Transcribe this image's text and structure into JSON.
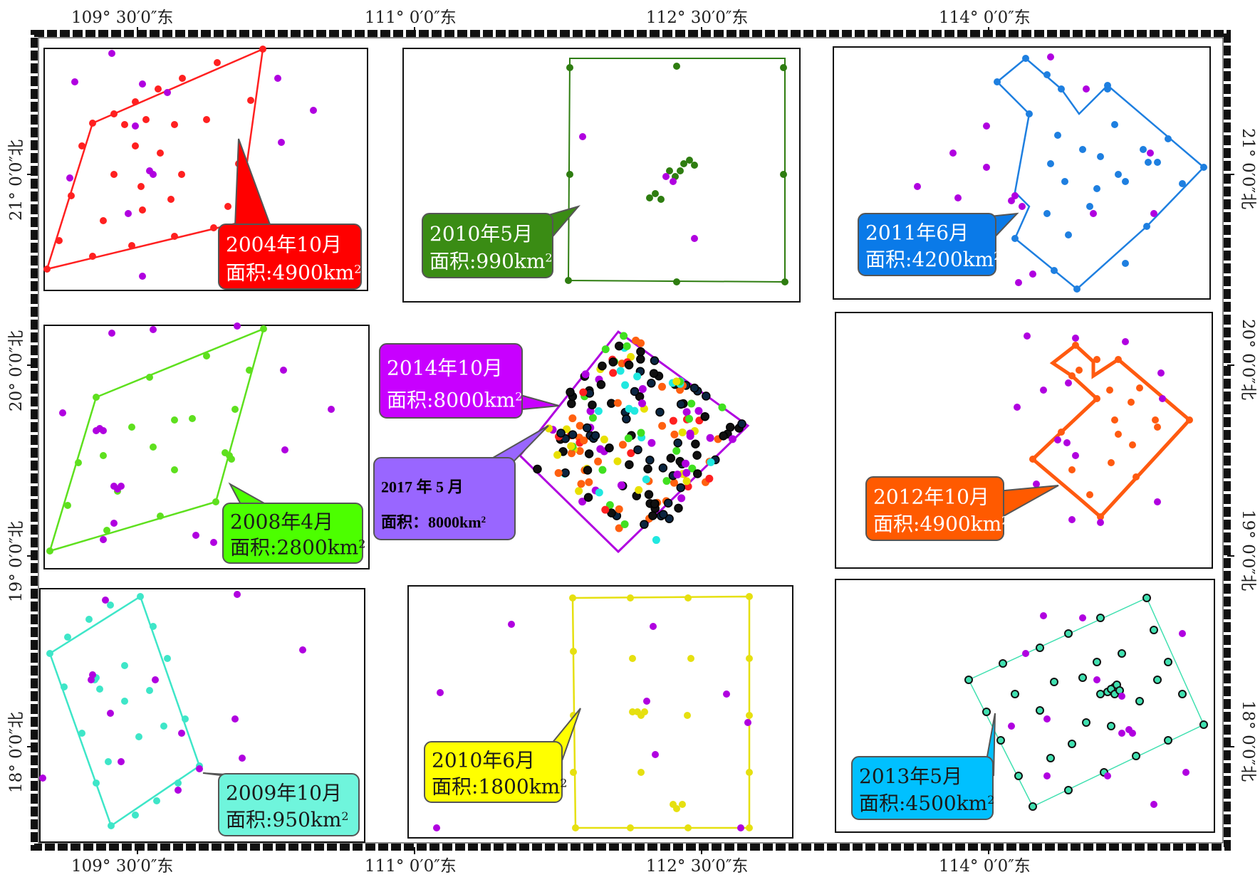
{
  "axes": {
    "top_labels": [
      "109° 30′0″东",
      "111° 0′0″东",
      "112° 30′0″东",
      "114° 0′0″东"
    ],
    "bottom_labels": [
      "109° 30′0″东",
      "111° 0′0″东",
      "112° 30′0″东",
      "114° 0′0″东"
    ],
    "left_labels": [
      "21° 0′0″北",
      "20° 0′0″北",
      "19° 0′0″北",
      "18° 0′0″北"
    ],
    "right_labels": [
      "21° 0′0″北",
      "20° 0′0″北",
      "19° 0′0″北",
      "18° 0′0″北"
    ]
  },
  "panels": [
    {
      "id": "p2004",
      "date": "2004年10月",
      "area_prefix": "面积:4900km",
      "color": "#ff2020",
      "label_fill": "#ff0000",
      "label_text": "#ffffff"
    },
    {
      "id": "p2010a",
      "date": "2010年5月",
      "area_prefix": "面积:990km",
      "color": "#2e7d10",
      "label_fill": "#3a8c14",
      "label_text": "#ffffff"
    },
    {
      "id": "p2011",
      "date": "2011年6月",
      "area_prefix": "面积:4200km",
      "color": "#1e7fe0",
      "label_fill": "#0a7ae8",
      "label_text": "#ffffff"
    },
    {
      "id": "p2008",
      "date": "2008年4月",
      "area_prefix": "面积:2800km",
      "color": "#5ee01e",
      "label_fill": "#4cff00",
      "label_text": "#1a1a1a"
    },
    {
      "id": "p2012",
      "date": "2012年10月",
      "area_prefix": "面积:4900km",
      "color": "#ff5a10",
      "label_fill": "#ff5a00",
      "label_text": "#ffffff"
    },
    {
      "id": "p2009",
      "date": "2009年10月",
      "area_prefix": "面积:950km",
      "color": "#3ee6c8",
      "label_fill": "#6ff5dc",
      "label_text": "#1a1a1a"
    },
    {
      "id": "p2010b",
      "date": "2010年6月",
      "area_prefix": "面积:1800km",
      "color": "#e6e010",
      "label_fill": "#ffff00",
      "label_text": "#1a1a1a"
    },
    {
      "id": "p2013",
      "date": "2013年5月",
      "area_prefix": "面积:4500km",
      "color": "#40e0b0",
      "label_fill": "#00c0ff",
      "label_text": "#1a1a1a"
    }
  ],
  "center": {
    "callout_2014": {
      "date": "2014年10月",
      "area_prefix": "面积:8000km",
      "fill": "#c800ff",
      "text": "#ffffff"
    },
    "callout_2017": {
      "date": "2017 年 5 月",
      "area_prefix": "面积：8000km",
      "fill": "#9966ff",
      "text": "#000000"
    },
    "outline_color": "#b000e0"
  },
  "superscript": "2",
  "point_colors": {
    "magenta": "#b000e0",
    "black": "#101010",
    "navy": "#0a2540",
    "orange": "#ff6010",
    "yellow": "#e8e000",
    "cyan": "#20e8e0",
    "green": "#40e020",
    "red": "#ff2020"
  }
}
